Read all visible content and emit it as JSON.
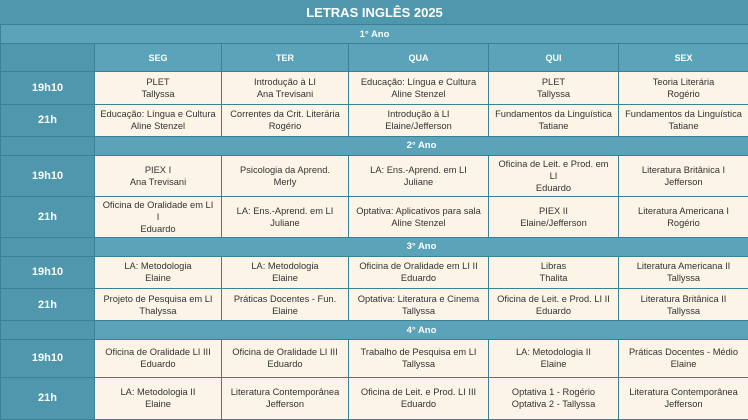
{
  "title": "LETRAS INGLÊS 2025",
  "days": [
    "SEG",
    "TER",
    "QUA",
    "QUI",
    "SEX"
  ],
  "years": [
    {
      "label": "1° Ano",
      "rows": [
        {
          "time": "19h10",
          "cells": [
            [
              "PLET",
              "Tallyssa"
            ],
            [
              "Introdução à LI",
              "Ana Trevisani"
            ],
            [
              "Educação: Língua e Cultura",
              "Aline Stenzel"
            ],
            [
              "PLET",
              "Tallyssa"
            ],
            [
              "Teoria Literária",
              "Rogério"
            ]
          ]
        },
        {
          "time": "21h",
          "cells": [
            [
              "Educação: Língua e Cultura",
              "Aline Stenzel"
            ],
            [
              "Correntes da Crit. Literária",
              "Rogério"
            ],
            [
              "Introdução à LI",
              "Elaine/Jefferson"
            ],
            [
              "Fundamentos da Linguística",
              "Tatiane"
            ],
            [
              "Fundamentos da Linguística",
              "Tatiane"
            ]
          ]
        }
      ]
    },
    {
      "label": "2° Ano",
      "rows": [
        {
          "time": "19h10",
          "cells": [
            [
              "PIEX I",
              "Ana Trevisani"
            ],
            [
              "Psicologia da Aprend.",
              "Merly"
            ],
            [
              "LA: Ens.-Aprend. em LI",
              "Juliane"
            ],
            [
              "Oficina de Leit. e Prod. em",
              "LI",
              "Eduardo"
            ],
            [
              "Literatura Britânica I",
              "Jefferson"
            ]
          ]
        },
        {
          "time": "21h",
          "cells": [
            [
              "Oficina de Oralidade em LI",
              "I",
              "Eduardo"
            ],
            [
              "LA: Ens.-Aprend. em LI",
              "Juliane"
            ],
            [
              "Optativa: Aplicativos para sala",
              "Aline Stenzel"
            ],
            [
              "PIEX II",
              "Elaine/Jefferson"
            ],
            [
              "Literatura Americana I",
              "Rogério"
            ]
          ]
        }
      ]
    },
    {
      "label": "3° Ano",
      "rows": [
        {
          "time": "19h10",
          "cells": [
            [
              "LA: Metodologia",
              "Elaine"
            ],
            [
              "LA: Metodologia",
              "Elaine"
            ],
            [
              "Oficina de Oralidade em LI II",
              "Eduardo"
            ],
            [
              "Libras",
              "Thalita"
            ],
            [
              "Literatura Americana II",
              "Tallyssa"
            ]
          ]
        },
        {
          "time": "21h",
          "cells": [
            [
              "Projeto de Pesquisa em LI",
              "Thalyssa"
            ],
            [
              "Práticas Docentes - Fun.",
              "Elaine"
            ],
            [
              "Optativa: Literatura e Cinema",
              "Tallyssa"
            ],
            [
              "Oficina de Leit. e Prod. LI II",
              "Eduardo"
            ],
            [
              "Literatura Britânica II",
              "Tallyssa"
            ]
          ]
        }
      ]
    },
    {
      "label": "4° Ano",
      "rows": [
        {
          "time": "19h10",
          "cells": [
            [
              "Oficina de Oralidade LI III",
              "Eduardo"
            ],
            [
              "Oficina de Oralidade LI III",
              "Eduardo"
            ],
            [
              "Trabalho de Pesquisa em LI",
              "Tallyssa"
            ],
            [
              "LA: Metodologia II",
              "Elaine"
            ],
            [
              "Práticas Docentes - Médio",
              "Elaine"
            ]
          ]
        },
        {
          "time": "21h",
          "cells": [
            [
              "LA: Metodologia II",
              "Elaine"
            ],
            [
              "Literatura Contemporânea",
              "Jefferson"
            ],
            [
              "Oficina de Leit. e Prod. LI III",
              "Eduardo"
            ],
            [
              "Optativa 1 - Rogério",
              "Optativa 2 - Tallyssa"
            ],
            [
              "Literatura Contemporânea",
              "Jefferson"
            ]
          ]
        }
      ]
    }
  ]
}
